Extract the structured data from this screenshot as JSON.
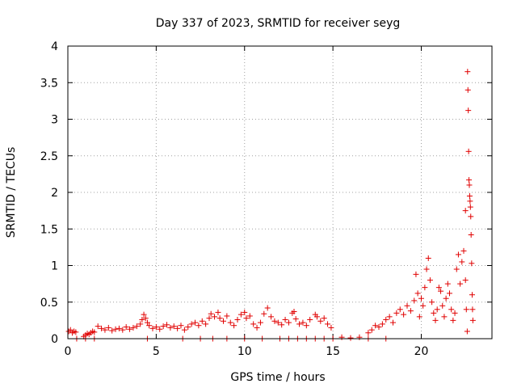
{
  "chart_data": {
    "type": "scatter",
    "title": "Day 337 of 2023, SRMTID for receiver seyg",
    "xlabel": "GPS time / hours",
    "ylabel": "SRMTID / TECUs",
    "xlim": [
      0,
      24
    ],
    "ylim": [
      0,
      4
    ],
    "grid": true,
    "x_ticks": [
      {
        "value": 0,
        "label": "0"
      },
      {
        "value": 5,
        "label": "5"
      },
      {
        "value": 10,
        "label": "10"
      },
      {
        "value": 15,
        "label": "15"
      },
      {
        "value": 20,
        "label": "20"
      }
    ],
    "y_ticks": [
      {
        "value": 0,
        "label": "0"
      },
      {
        "value": 0.5,
        "label": "0.5"
      },
      {
        "value": 1,
        "label": "1"
      },
      {
        "value": 1.5,
        "label": "1.5"
      },
      {
        "value": 2,
        "label": "2"
      },
      {
        "value": 2.5,
        "label": "2.5"
      },
      {
        "value": 3,
        "label": "3"
      },
      {
        "value": 3.5,
        "label": "3.5"
      },
      {
        "value": 4,
        "label": "4"
      }
    ],
    "marker": "+",
    "marker_color": "#e00000",
    "series": [
      {
        "name": "SRMTID",
        "points": [
          [
            0.05,
            0.1
          ],
          [
            0.15,
            0.12
          ],
          [
            0.25,
            0.08
          ],
          [
            0.35,
            0.1
          ],
          [
            0.45,
            0.09
          ],
          [
            0.9,
            0.03
          ],
          [
            1.0,
            0.05
          ],
          [
            1.1,
            0.07
          ],
          [
            1.2,
            0.06
          ],
          [
            1.3,
            0.08
          ],
          [
            1.4,
            0.1
          ],
          [
            1.5,
            0.09
          ],
          [
            1.7,
            0.17
          ],
          [
            1.9,
            0.14
          ],
          [
            2.1,
            0.12
          ],
          [
            2.3,
            0.15
          ],
          [
            2.5,
            0.11
          ],
          [
            2.7,
            0.13
          ],
          [
            2.9,
            0.14
          ],
          [
            3.1,
            0.12
          ],
          [
            3.3,
            0.16
          ],
          [
            3.5,
            0.13
          ],
          [
            3.7,
            0.15
          ],
          [
            3.9,
            0.17
          ],
          [
            4.1,
            0.2
          ],
          [
            4.2,
            0.26
          ],
          [
            4.3,
            0.33
          ],
          [
            4.4,
            0.28
          ],
          [
            4.5,
            0.22
          ],
          [
            4.6,
            0.18
          ],
          [
            4.8,
            0.14
          ],
          [
            5.0,
            0.16
          ],
          [
            5.2,
            0.13
          ],
          [
            5.4,
            0.17
          ],
          [
            5.6,
            0.19
          ],
          [
            5.8,
            0.15
          ],
          [
            6.0,
            0.17
          ],
          [
            6.2,
            0.14
          ],
          [
            6.4,
            0.18
          ],
          [
            6.6,
            0.12
          ],
          [
            6.8,
            0.16
          ],
          [
            7.0,
            0.2
          ],
          [
            7.2,
            0.22
          ],
          [
            7.4,
            0.18
          ],
          [
            7.6,
            0.24
          ],
          [
            7.8,
            0.2
          ],
          [
            8.0,
            0.28
          ],
          [
            8.1,
            0.34
          ],
          [
            8.3,
            0.3
          ],
          [
            8.5,
            0.36
          ],
          [
            8.6,
            0.28
          ],
          [
            8.8,
            0.24
          ],
          [
            9.0,
            0.31
          ],
          [
            9.2,
            0.22
          ],
          [
            9.4,
            0.18
          ],
          [
            9.6,
            0.26
          ],
          [
            9.8,
            0.33
          ],
          [
            10.0,
            0.36
          ],
          [
            10.1,
            0.28
          ],
          [
            10.3,
            0.31
          ],
          [
            10.5,
            0.2
          ],
          [
            10.7,
            0.15
          ],
          [
            10.9,
            0.22
          ],
          [
            11.1,
            0.34
          ],
          [
            11.3,
            0.42
          ],
          [
            11.5,
            0.3
          ],
          [
            11.7,
            0.24
          ],
          [
            11.9,
            0.22
          ],
          [
            12.1,
            0.19
          ],
          [
            12.3,
            0.26
          ],
          [
            12.5,
            0.22
          ],
          [
            12.7,
            0.35
          ],
          [
            12.8,
            0.37
          ],
          [
            12.9,
            0.27
          ],
          [
            13.1,
            0.2
          ],
          [
            13.3,
            0.22
          ],
          [
            13.5,
            0.18
          ],
          [
            13.7,
            0.26
          ],
          [
            14.0,
            0.33
          ],
          [
            14.1,
            0.3
          ],
          [
            14.3,
            0.24
          ],
          [
            14.5,
            0.28
          ],
          [
            14.7,
            0.2
          ],
          [
            14.9,
            0.15
          ],
          [
            15.5,
            0.02
          ],
          [
            16.0,
            0.01
          ],
          [
            16.5,
            0.02
          ],
          [
            17.0,
            0.08
          ],
          [
            17.2,
            0.12
          ],
          [
            17.4,
            0.18
          ],
          [
            17.6,
            0.16
          ],
          [
            17.8,
            0.2
          ],
          [
            18.0,
            0.26
          ],
          [
            18.2,
            0.3
          ],
          [
            18.4,
            0.22
          ],
          [
            18.6,
            0.35
          ],
          [
            18.8,
            0.4
          ],
          [
            19.0,
            0.33
          ],
          [
            19.2,
            0.45
          ],
          [
            19.4,
            0.38
          ],
          [
            19.6,
            0.52
          ],
          [
            19.7,
            0.88
          ],
          [
            19.8,
            0.62
          ],
          [
            19.9,
            0.3
          ],
          [
            20.0,
            0.55
          ],
          [
            20.1,
            0.45
          ],
          [
            20.2,
            0.7
          ],
          [
            20.3,
            0.95
          ],
          [
            20.4,
            1.1
          ],
          [
            20.5,
            0.8
          ],
          [
            20.6,
            0.5
          ],
          [
            20.7,
            0.35
          ],
          [
            20.8,
            0.25
          ],
          [
            20.9,
            0.4
          ],
          [
            21.0,
            0.7
          ],
          [
            21.1,
            0.65
          ],
          [
            21.2,
            0.45
          ],
          [
            21.3,
            0.3
          ],
          [
            21.4,
            0.55
          ],
          [
            21.5,
            0.75
          ],
          [
            21.6,
            0.62
          ],
          [
            21.7,
            0.4
          ],
          [
            21.8,
            0.25
          ],
          [
            21.9,
            0.35
          ],
          [
            22.0,
            0.95
          ],
          [
            22.1,
            1.15
          ],
          [
            22.2,
            0.75
          ],
          [
            22.3,
            1.05
          ],
          [
            22.4,
            1.2
          ],
          [
            22.5,
            0.8
          ],
          [
            22.55,
            0.4
          ],
          [
            22.6,
            0.1
          ],
          [
            22.62,
            3.65
          ],
          [
            22.64,
            3.4
          ],
          [
            22.66,
            3.12
          ],
          [
            22.68,
            2.56
          ],
          [
            22.7,
            2.17
          ],
          [
            22.72,
            2.1
          ],
          [
            22.74,
            1.95
          ],
          [
            22.76,
            1.88
          ],
          [
            22.78,
            1.8
          ],
          [
            22.5,
            1.75
          ],
          [
            22.8,
            1.67
          ],
          [
            22.82,
            1.42
          ],
          [
            22.85,
            1.03
          ],
          [
            22.88,
            0.6
          ],
          [
            22.9,
            0.4
          ],
          [
            22.92,
            0.25
          ],
          [
            0.5,
            0.0
          ],
          [
            1.0,
            0.0
          ],
          [
            1.5,
            0.0
          ],
          [
            4.5,
            0.0
          ],
          [
            6.5,
            0.0
          ],
          [
            7.5,
            0.0
          ],
          [
            8.2,
            0.0
          ],
          [
            9.0,
            0.0
          ],
          [
            10.0,
            0.0
          ],
          [
            11.0,
            0.0
          ],
          [
            12.0,
            0.0
          ],
          [
            12.5,
            0.0
          ],
          [
            13.0,
            0.0
          ],
          [
            13.5,
            0.0
          ],
          [
            14.0,
            0.0
          ],
          [
            14.5,
            0.0
          ],
          [
            15.0,
            0.0
          ],
          [
            17.0,
            0.0
          ],
          [
            18.0,
            0.0
          ]
        ]
      }
    ]
  }
}
